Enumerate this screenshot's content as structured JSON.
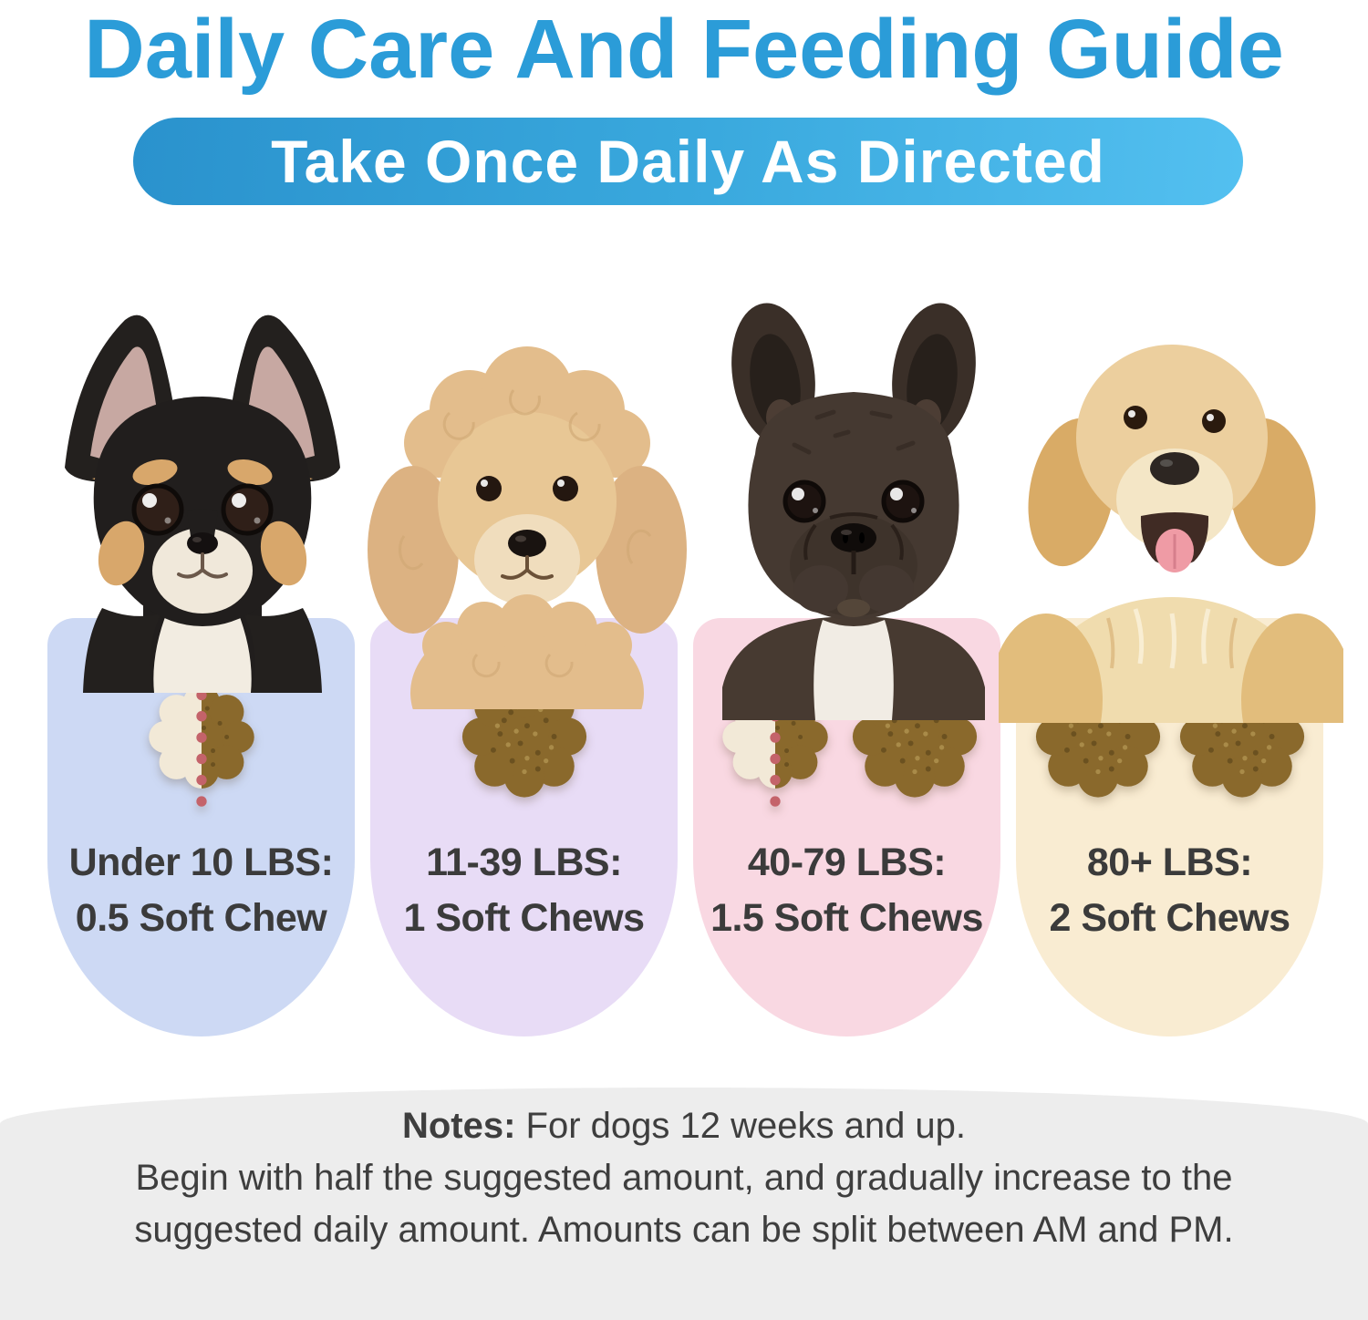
{
  "title": "Daily Care And Feeding Guide",
  "banner": {
    "text": "Take Once Daily As Directed"
  },
  "cards": [
    {
      "dog": "chihuahua",
      "bg": "#cdd9f4",
      "weight_label": "Under 10 LBS:",
      "dose_label": "0.5 Soft Chew",
      "half_chews": 1,
      "full_chews": 0
    },
    {
      "dog": "poodle",
      "bg": "#e8dcf6",
      "weight_label": "11-39 LBS:",
      "dose_label": "1 Soft Chews",
      "half_chews": 0,
      "full_chews": 1
    },
    {
      "dog": "french-bulldog",
      "bg": "#f9d8e2",
      "weight_label": "40-79 LBS:",
      "dose_label": "1.5 Soft Chews",
      "half_chews": 1,
      "full_chews": 1
    },
    {
      "dog": "golden-retriever",
      "bg": "#f9ecd2",
      "weight_label": "80+ LBS:",
      "dose_label": "2 Soft Chews",
      "half_chews": 0,
      "full_chews": 2
    }
  ],
  "notes": {
    "label": "Notes:",
    "line1": "For dogs 12 weeks and up.",
    "line2": "Begin with half the suggested amount, and gradually increase to the",
    "line3": "suggested daily amount. Amounts can be split between AM and PM."
  },
  "colors": {
    "title_blue": "#2b9cd8",
    "banner_gradient_left": "#2a92cd",
    "banner_gradient_right": "#53c0f0",
    "card_text": "#3b3b3b",
    "chew_brown": "#8a692c",
    "chew_half_cream": "#f2e9d7",
    "dotted_line_red": "#c4636a",
    "notes_bg": "#ededed",
    "notes_text": "#3e3e3e"
  }
}
